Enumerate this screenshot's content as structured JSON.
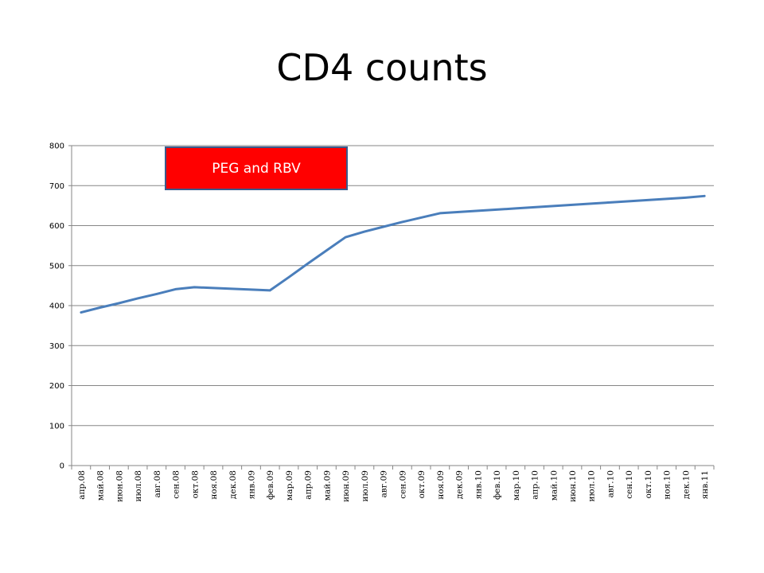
{
  "slide": {
    "title": "CD4 counts"
  },
  "chart_data": {
    "type": "line",
    "title": "CD4 counts",
    "xlabel": "",
    "ylabel": "",
    "ylim": [
      0,
      800
    ],
    "yticks": [
      0,
      100,
      200,
      300,
      400,
      500,
      600,
      700,
      800
    ],
    "grid": true,
    "legend": "none",
    "categories": [
      "апр.08",
      "май.08",
      "июн.08",
      "июл.08",
      "авг.08",
      "сен.08",
      "окт.08",
      "ноя.08",
      "дек.08",
      "янв.09",
      "фев.09",
      "мар.09",
      "апр.09",
      "май.09",
      "июн.09",
      "июл.09",
      "авг.09",
      "сен.09",
      "окт.09",
      "ноя.09",
      "дек.09",
      "янв.10",
      "фев.10",
      "мар.10",
      "апр.10",
      "май.10",
      "июн.10",
      "июл.10",
      "авг.10",
      "сен.10",
      "окт.10",
      "ноя.10",
      "дек.10",
      "янв.11"
    ],
    "series": [
      {
        "color": "#4a7ebb",
        "values": [
          383,
          395,
          406,
          418,
          429,
          441,
          446,
          444,
          442,
          440,
          438,
          471,
          505,
          538,
          571,
          585,
          597,
          609,
          620,
          631,
          634,
          637,
          640,
          643,
          646,
          649,
          652,
          655,
          658,
          661,
          664,
          667,
          670,
          674
        ]
      }
    ],
    "annotations": [
      {
        "text": "PEG and RBV",
        "background": "#ff0000",
        "border": "#3a5a8c"
      }
    ]
  }
}
